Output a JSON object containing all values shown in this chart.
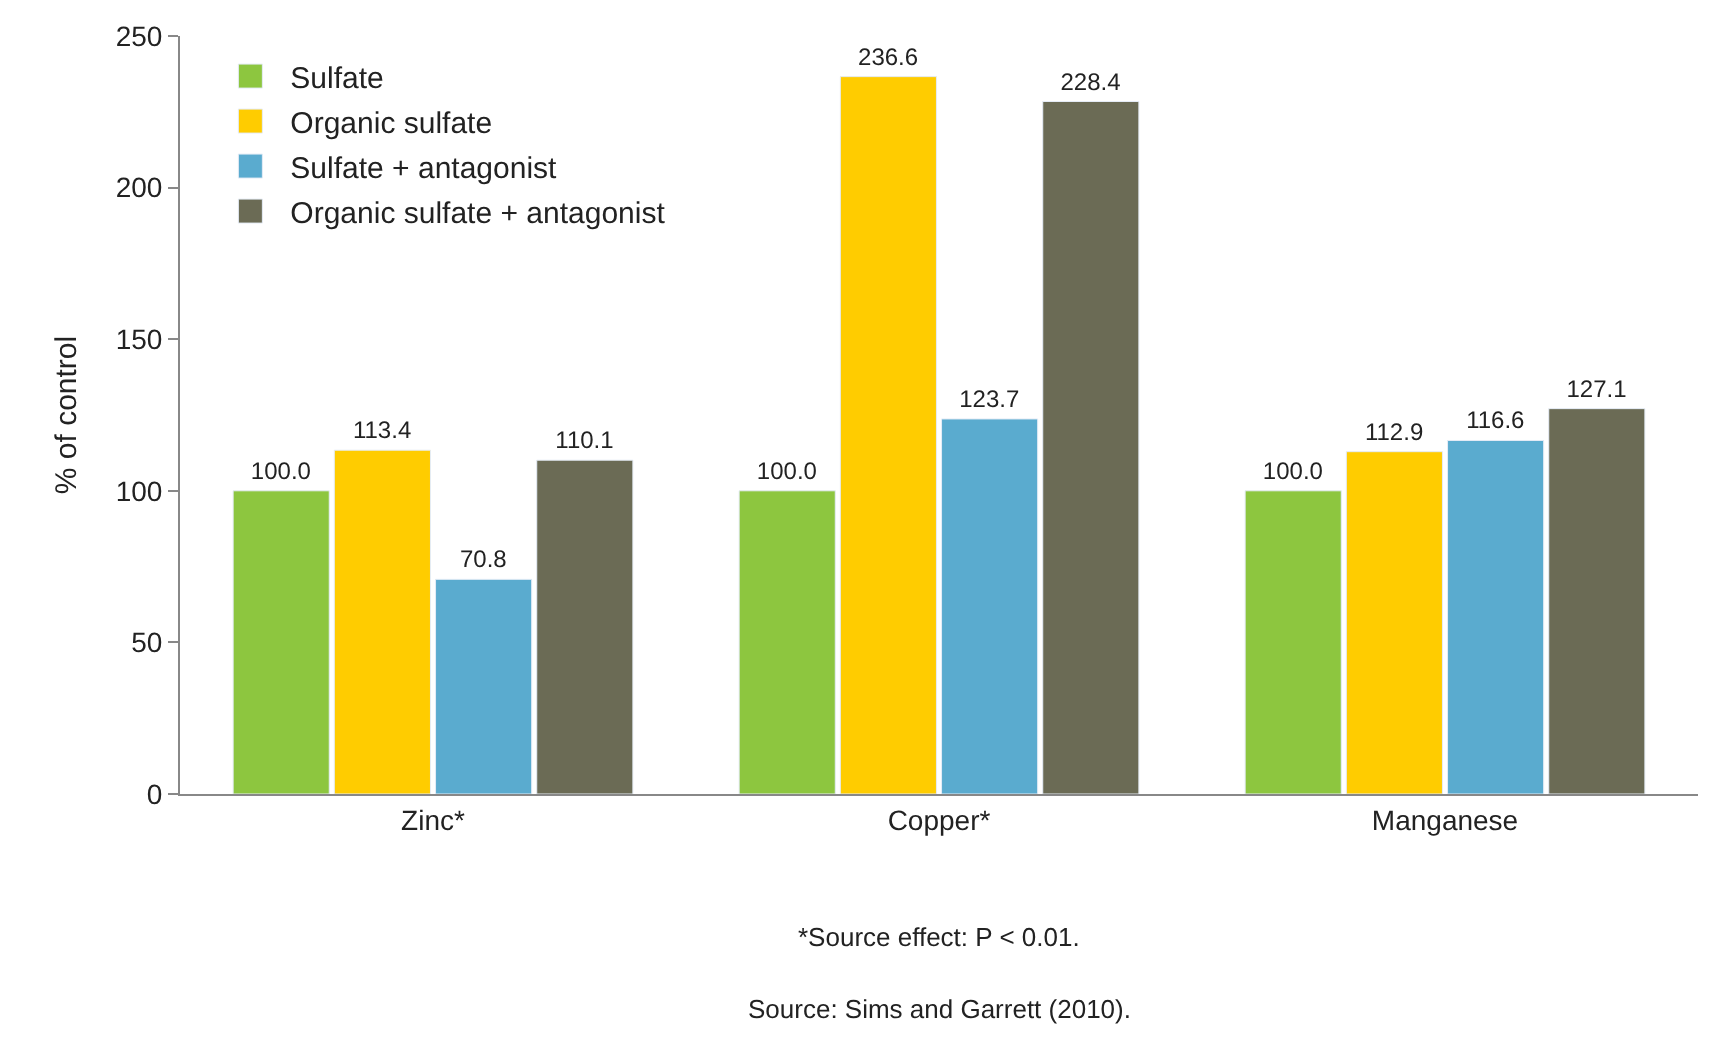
{
  "chart_data": {
    "type": "bar",
    "ylabel": "% of control",
    "categories": [
      "Zinc*",
      "Copper*",
      "Manganese"
    ],
    "series": [
      {
        "name": "Sulfate",
        "color": "#8dc63f",
        "values": [
          100.0,
          100.0,
          100.0
        ],
        "value_labels": [
          "100.0",
          "100.0",
          "100.0"
        ]
      },
      {
        "name": "Organic sulfate",
        "color": "#ffcc00",
        "values": [
          113.4,
          236.6,
          112.9
        ],
        "value_labels": [
          "113.4",
          "236.6",
          "112.9"
        ]
      },
      {
        "name": "Sulfate + antagonist",
        "color": "#5aabcf",
        "values": [
          70.8,
          123.7,
          116.6
        ],
        "value_labels": [
          "70.8",
          "123.7",
          "116.6"
        ]
      },
      {
        "name": "Organic sulfate + antagonist",
        "color": "#6b6b55",
        "values": [
          110.1,
          228.4,
          127.1
        ],
        "value_labels": [
          "110.1",
          "228.4",
          "127.1"
        ]
      }
    ],
    "ylim": [
      0,
      250
    ],
    "yticks": [
      0,
      50,
      100,
      150,
      200,
      250
    ],
    "legend": "top left",
    "annotations": [
      "*Source effect: P < 0.01.",
      "Source: Sims and Garrett (2010)."
    ]
  }
}
